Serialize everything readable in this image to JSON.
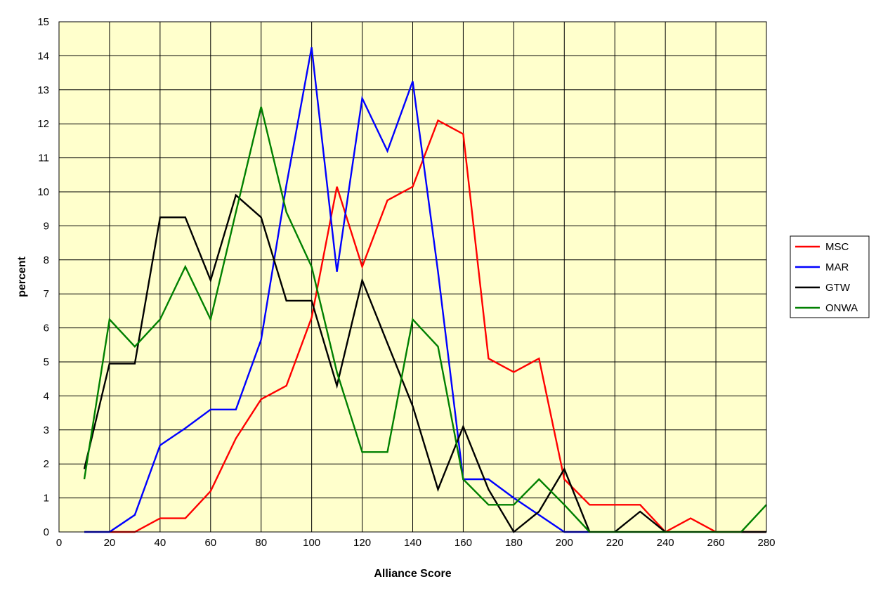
{
  "chart_data": {
    "type": "line",
    "title": "",
    "xlabel": "Alliance Score",
    "ylabel": "percent",
    "xlim": [
      0,
      280
    ],
    "ylim": [
      0,
      15
    ],
    "x_ticks": [
      0,
      20,
      40,
      60,
      80,
      100,
      120,
      140,
      160,
      180,
      200,
      220,
      240,
      260,
      280
    ],
    "y_ticks": [
      0,
      1,
      2,
      3,
      4,
      5,
      6,
      7,
      8,
      9,
      10,
      11,
      12,
      13,
      14,
      15
    ],
    "grid": true,
    "legend_position": "right",
    "plot_background": "#ffffcc",
    "series": [
      {
        "name": "MSC",
        "color": "#ff0000",
        "points": [
          [
            20,
            0
          ],
          [
            30,
            0
          ],
          [
            40,
            0.4
          ],
          [
            50,
            0.4
          ],
          [
            60,
            1.2
          ],
          [
            70,
            2.75
          ],
          [
            80,
            3.9
          ],
          [
            90,
            4.3
          ],
          [
            100,
            6.3
          ],
          [
            110,
            10.15
          ],
          [
            120,
            7.8
          ],
          [
            130,
            9.75
          ],
          [
            140,
            10.15
          ],
          [
            150,
            12.1
          ],
          [
            160,
            11.7
          ],
          [
            170,
            5.1
          ],
          [
            180,
            4.7
          ],
          [
            190,
            5.1
          ],
          [
            200,
            1.55
          ],
          [
            210,
            0.8
          ],
          [
            220,
            0.8
          ],
          [
            230,
            0.8
          ],
          [
            240,
            0
          ],
          [
            250,
            0.4
          ],
          [
            260,
            0
          ],
          [
            270,
            0
          ],
          [
            280,
            0
          ]
        ]
      },
      {
        "name": "MAR",
        "color": "#0000ff",
        "points": [
          [
            10,
            0
          ],
          [
            20,
            0
          ],
          [
            30,
            0.5
          ],
          [
            40,
            2.55
          ],
          [
            50,
            3.05
          ],
          [
            60,
            3.6
          ],
          [
            70,
            3.6
          ],
          [
            80,
            5.65
          ],
          [
            90,
            10.2
          ],
          [
            100,
            14.25
          ],
          [
            110,
            7.65
          ],
          [
            120,
            12.75
          ],
          [
            130,
            11.2
          ],
          [
            140,
            13.25
          ],
          [
            150,
            7.65
          ],
          [
            160,
            1.55
          ],
          [
            170,
            1.55
          ],
          [
            180,
            1.0
          ],
          [
            190,
            0.5
          ],
          [
            200,
            0
          ],
          [
            210,
            0
          ]
        ]
      },
      {
        "name": "GTW",
        "color": "#000000",
        "points": [
          [
            10,
            1.85
          ],
          [
            20,
            4.95
          ],
          [
            30,
            4.95
          ],
          [
            40,
            9.25
          ],
          [
            50,
            9.25
          ],
          [
            60,
            7.4
          ],
          [
            70,
            9.9
          ],
          [
            80,
            9.25
          ],
          [
            90,
            6.8
          ],
          [
            100,
            6.8
          ],
          [
            110,
            4.3
          ],
          [
            120,
            7.4
          ],
          [
            130,
            5.55
          ],
          [
            140,
            3.7
          ],
          [
            150,
            1.25
          ],
          [
            160,
            3.1
          ],
          [
            170,
            1.25
          ],
          [
            180,
            0
          ],
          [
            190,
            0.6
          ],
          [
            200,
            1.85
          ],
          [
            210,
            0
          ]
        ],
        "extra_segments": [
          [
            [
              220,
              0
            ],
            [
              230,
              0.6
            ],
            [
              240,
              0
            ]
          ],
          [
            [
              270,
              0
            ],
            [
              280,
              0
            ]
          ]
        ]
      },
      {
        "name": "ONWA",
        "color": "#008000",
        "points": [
          [
            10,
            1.55
          ],
          [
            20,
            6.25
          ],
          [
            30,
            5.45
          ],
          [
            40,
            6.25
          ],
          [
            50,
            7.8
          ],
          [
            60,
            6.25
          ],
          [
            70,
            9.4
          ],
          [
            80,
            12.5
          ],
          [
            90,
            9.4
          ],
          [
            100,
            7.8
          ],
          [
            110,
            4.7
          ],
          [
            120,
            2.35
          ],
          [
            130,
            2.35
          ],
          [
            140,
            6.25
          ],
          [
            150,
            5.45
          ],
          [
            160,
            1.55
          ],
          [
            170,
            0.8
          ],
          [
            180,
            0.8
          ],
          [
            190,
            1.55
          ],
          [
            200,
            0.8
          ],
          [
            210,
            0
          ],
          [
            220,
            0
          ],
          [
            230,
            0
          ],
          [
            240,
            0
          ],
          [
            250,
            0
          ],
          [
            260,
            0
          ],
          [
            270,
            0
          ],
          [
            280,
            0.8
          ]
        ]
      }
    ]
  }
}
